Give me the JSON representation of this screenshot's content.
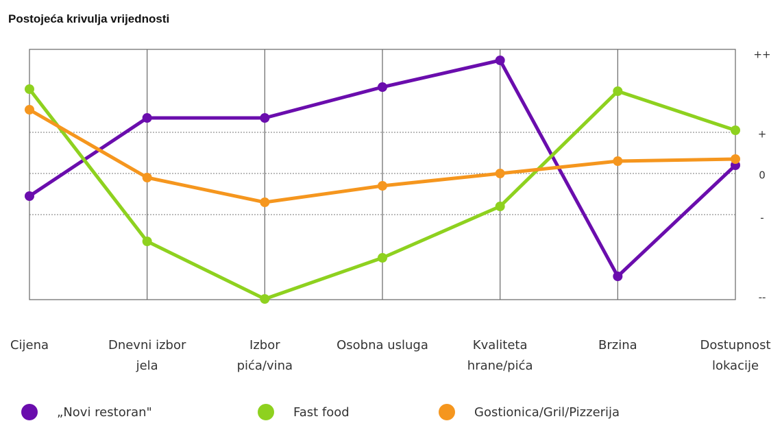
{
  "title": "Postojeća krivulja vrijednosti",
  "chart_data": {
    "type": "line",
    "title": "Postojeća krivulja vrijednosti",
    "categories": [
      [
        "Cijena"
      ],
      [
        "Dnevni izbor",
        "jela"
      ],
      [
        "Izbor",
        "pića/vina"
      ],
      [
        "Osobna usluga"
      ],
      [
        "Kvaliteta",
        "hrane/pića"
      ],
      [
        "Brzina"
      ],
      [
        "Dostupnost",
        "lokacije"
      ]
    ],
    "y_tick_labels": [
      "++",
      "+",
      "0",
      "-",
      "--"
    ],
    "y_tick_values": [
      2,
      1,
      0,
      -1,
      -2
    ],
    "ylim": [
      -2,
      2
    ],
    "grid": true,
    "legend_position": "bottom",
    "series": [
      {
        "name": "„Novi restoran\"",
        "color": "#6a0dad",
        "values": [
          -0.55,
          1.35,
          1.35,
          2.1,
          2.75,
          -2.5,
          0.2
        ]
      },
      {
        "name": "Fast food",
        "color": "#8ed11f",
        "values": [
          2.05,
          -1.65,
          -3.05,
          -2.05,
          -0.8,
          2.0,
          1.05
        ]
      },
      {
        "name": "Gostionica/Gril/Pizzerija",
        "color": "#f5961e",
        "values": [
          1.55,
          -0.1,
          -0.7,
          -0.3,
          0.0,
          0.3,
          0.35
        ]
      }
    ]
  }
}
